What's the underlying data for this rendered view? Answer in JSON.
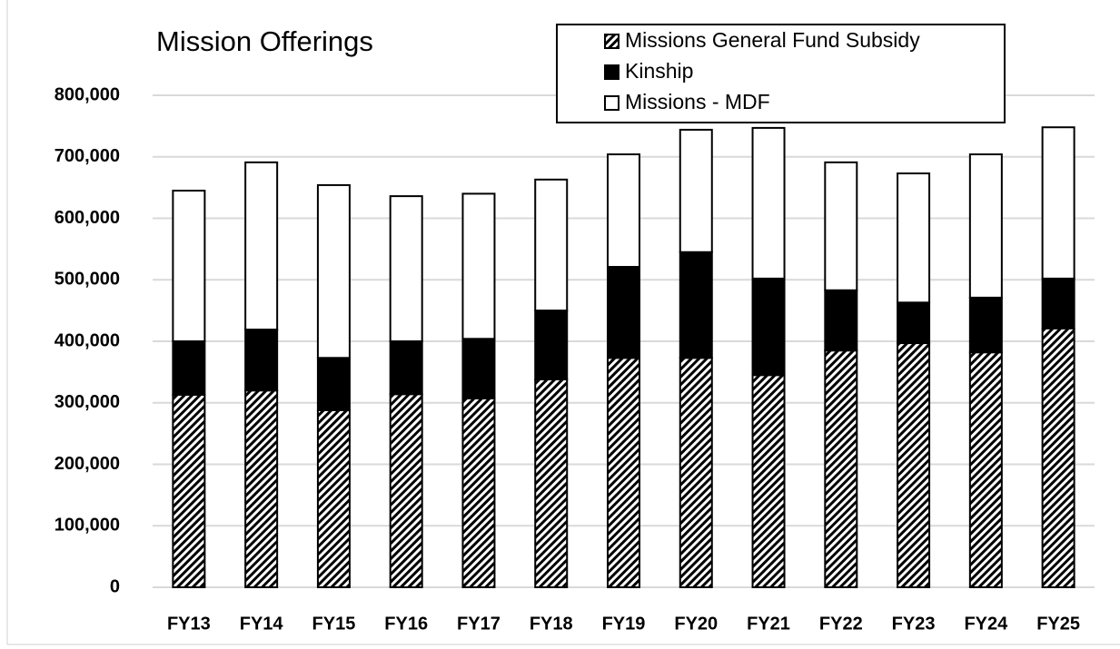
{
  "chart_data": {
    "type": "stacked_bar",
    "title": "Mission Offerings",
    "categories": [
      "FY13",
      "FY14",
      "FY15",
      "FY16",
      "FY17",
      "FY18",
      "FY19",
      "FY20",
      "FY21",
      "FY22",
      "FY23",
      "FY24",
      "FY25"
    ],
    "series": [
      {
        "name": "Missions General Fund Subsidy",
        "color": "#000000",
        "pattern": "diagonal-hatch",
        "values": [
          313000,
          320000,
          288000,
          314000,
          307000,
          338000,
          373000,
          373000,
          345000,
          385000,
          397000,
          382000,
          421000
        ]
      },
      {
        "name": "Kinship",
        "color": "#000000",
        "values": [
          87000,
          99000,
          85000,
          86000,
          97000,
          112000,
          148000,
          172000,
          157000,
          98000,
          66000,
          89000,
          81000
        ]
      },
      {
        "name": "Missions - MDF",
        "color": "#ffffff",
        "values": [
          245000,
          272000,
          281000,
          236000,
          236000,
          213000,
          183000,
          199000,
          245000,
          208000,
          210000,
          233000,
          246000
        ]
      }
    ],
    "ylim": [
      0,
      800000
    ],
    "yticks": [
      0,
      {
        "value": 100000,
        "label": "100,000"
      },
      {
        "value": 200000,
        "label": "200,000"
      },
      {
        "value": 300000,
        "label": "300,000"
      },
      {
        "value": 400000,
        "label": "400,000"
      },
      {
        "value": 500000,
        "label": "500,000"
      },
      {
        "value": 600000,
        "label": "600,000"
      },
      {
        "value": 700000,
        "label": "700,000"
      },
      {
        "value": 800000,
        "label": "800,000"
      }
    ],
    "grid": true,
    "legend": "top-right"
  }
}
